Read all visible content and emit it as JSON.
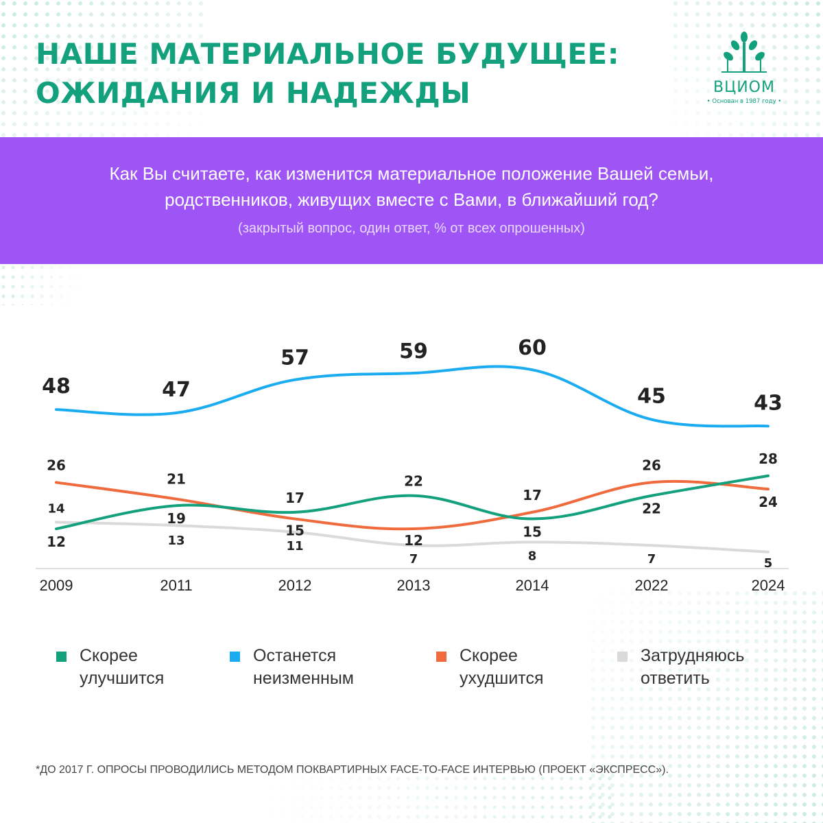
{
  "header": {
    "title_line1": "НАШЕ МАТЕРИАЛЬНОЕ БУДУЩЕЕ:",
    "title_line2": "ОЖИДАНИЯ И НАДЕЖДЫ",
    "logo_name": "ВЦИОМ",
    "logo_tagline": "• Основан в 1987 году •"
  },
  "banner": {
    "question_line1": "Как Вы считаете, как изменится материальное положение Вашей семьи,",
    "question_line2": "родственников, живущих вместе с Вами, в ближайший год?",
    "note": "(закрытый вопрос, один ответ, % от всех опрошенных)"
  },
  "chart_data": {
    "type": "line",
    "title": "",
    "xlabel": "",
    "ylabel": "",
    "x": [
      "2009",
      "2011",
      "2012",
      "2013",
      "2014",
      "2022",
      "2024"
    ],
    "ylim": [
      0,
      65
    ],
    "grid": false,
    "legend_position": "bottom",
    "series": [
      {
        "name": "Останется неизменным",
        "color": "#1aabf0",
        "values": [
          48,
          47,
          57,
          59,
          60,
          45,
          43
        ]
      },
      {
        "name": "Скорее ухудшится",
        "color": "#ef6b3d",
        "values": [
          26,
          21,
          15,
          12,
          17,
          26,
          24
        ]
      },
      {
        "name": "Скорее улучшится",
        "color": "#13a07c",
        "values": [
          12,
          19,
          17,
          22,
          15,
          22,
          28
        ]
      },
      {
        "name": "Затрудняюсь ответить",
        "color": "#dadada",
        "values": [
          14,
          13,
          11,
          7,
          8,
          7,
          5
        ]
      }
    ]
  },
  "legend": [
    {
      "line1": "Скорее",
      "line2": "улучшится",
      "color": "#13a07c"
    },
    {
      "line1": "Останется",
      "line2": "неизменным",
      "color": "#1aabf0"
    },
    {
      "line1": "Скорее",
      "line2": "ухудшится",
      "color": "#ef6b3d"
    },
    {
      "line1": "Затрудняюсь",
      "line2": "ответить",
      "color": "#dadada"
    }
  ],
  "footnote": "*ДО 2017 Г. ОПРОСЫ ПРОВОДИЛИСЬ МЕТОДОМ ПОКВАРТИРНЫХ FACE-TO-FACE ИНТЕРВЬЮ (ПРОЕКТ «ЭКСПРЕСС»).",
  "colors": {
    "brand_green": "#13a07c",
    "banner_purple": "#9f54f5"
  }
}
